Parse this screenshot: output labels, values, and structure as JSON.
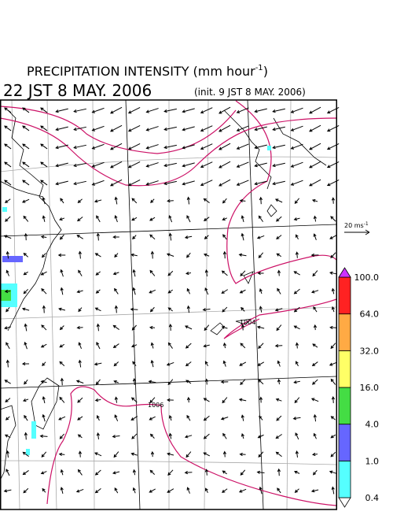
{
  "header": {
    "title": "PRECIPITATION INTENSITY (mm hour",
    "title_sup": "-1",
    "title_end": ")",
    "valid_time": "22 JST 8 MAY. 2006",
    "init_time": "(init. 9 JST 8 MAY. 2006)"
  },
  "wind_scale": {
    "label": "20 ms",
    "label_sup": "-1"
  },
  "map": {
    "contour_labels": [
      "1004",
      "1006"
    ]
  },
  "colorbar": {
    "levels": [
      {
        "label": "0.4",
        "color": "#55ffff"
      },
      {
        "label": "1.0",
        "color": "#6666ff"
      },
      {
        "label": "4.0",
        "color": "#44dd44"
      },
      {
        "label": "16.0",
        "color": "#ffff66"
      },
      {
        "label": "32.0",
        "color": "#ffaa44"
      },
      {
        "label": "64.0",
        "color": "#ff2222"
      },
      {
        "label": "100.0",
        "color": "#cc33ff"
      }
    ]
  }
}
